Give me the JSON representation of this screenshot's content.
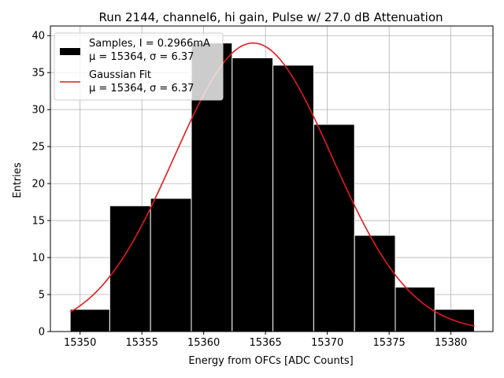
{
  "chart_data": {
    "type": "bar",
    "title": "Run 2144, channel6, hi gain, Pulse w/ 27.0 dB Attenuation",
    "xlabel": "Energy from OFCs [ADC Counts]",
    "ylabel": "Entries",
    "xlim": [
      15347.6,
      15383.4
    ],
    "ylim": [
      0,
      41.3
    ],
    "xticks": [
      15350,
      15355,
      15360,
      15365,
      15370,
      15375,
      15380
    ],
    "yticks": [
      0,
      5,
      10,
      15,
      20,
      25,
      30,
      35,
      40
    ],
    "grid": true,
    "legend_position": "top-left",
    "bins": [
      {
        "left": 15349.2,
        "right": 15352.4,
        "count": 3
      },
      {
        "left": 15352.4,
        "right": 15355.7,
        "count": 17
      },
      {
        "left": 15355.7,
        "right": 15359.0,
        "count": 18
      },
      {
        "left": 15359.0,
        "right": 15362.3,
        "count": 39
      },
      {
        "left": 15362.3,
        "right": 15365.6,
        "count": 37
      },
      {
        "left": 15365.6,
        "right": 15368.9,
        "count": 36
      },
      {
        "left": 15368.9,
        "right": 15372.2,
        "count": 28
      },
      {
        "left": 15372.2,
        "right": 15375.5,
        "count": 13
      },
      {
        "left": 15375.5,
        "right": 15378.7,
        "count": 6
      },
      {
        "left": 15378.7,
        "right": 15381.9,
        "count": 3
      }
    ],
    "series": [
      {
        "name": "Samples",
        "type": "histogram",
        "color": "#000000",
        "legend_line1": "Samples, I = 0.2966mA",
        "legend_line2": "μ = 15364, σ = 6.37"
      },
      {
        "name": "Gaussian Fit",
        "type": "line",
        "color": "#e41a1c",
        "legend_line1": "Gaussian Fit",
        "legend_line2": "μ = 15364, σ = 6.37",
        "x_range": [
          15349.2,
          15381.9
        ],
        "amplitude": 39.0,
        "mean": 15364,
        "sigma": 6.37
      }
    ]
  }
}
